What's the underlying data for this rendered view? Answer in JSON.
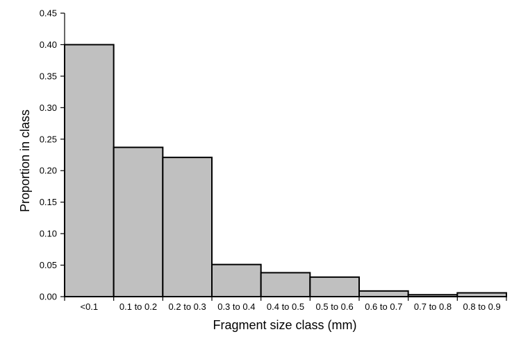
{
  "chart_data": {
    "type": "bar",
    "title": "",
    "xlabel": "Fragment size class (mm)",
    "ylabel": "Proportion in class",
    "categories": [
      "<0.1",
      "0.1 to 0.2",
      "0.2 to 0.3",
      "0.3 to 0.4",
      "0.4 to 0.5",
      "0.5 to 0.6",
      "0.6 to 0.7",
      "0.7 to 0.8",
      "0.8 to 0.9"
    ],
    "values": [
      0.4,
      0.237,
      0.221,
      0.051,
      0.038,
      0.031,
      0.009,
      0.003,
      0.006
    ],
    "ylim": [
      0,
      0.45
    ],
    "yticks": [
      "0.00",
      "0.05",
      "0.10",
      "0.15",
      "0.20",
      "0.25",
      "0.30",
      "0.35",
      "0.40",
      "0.45"
    ],
    "bar_color": "#c0c0c0",
    "grid": false,
    "legend": "none"
  }
}
